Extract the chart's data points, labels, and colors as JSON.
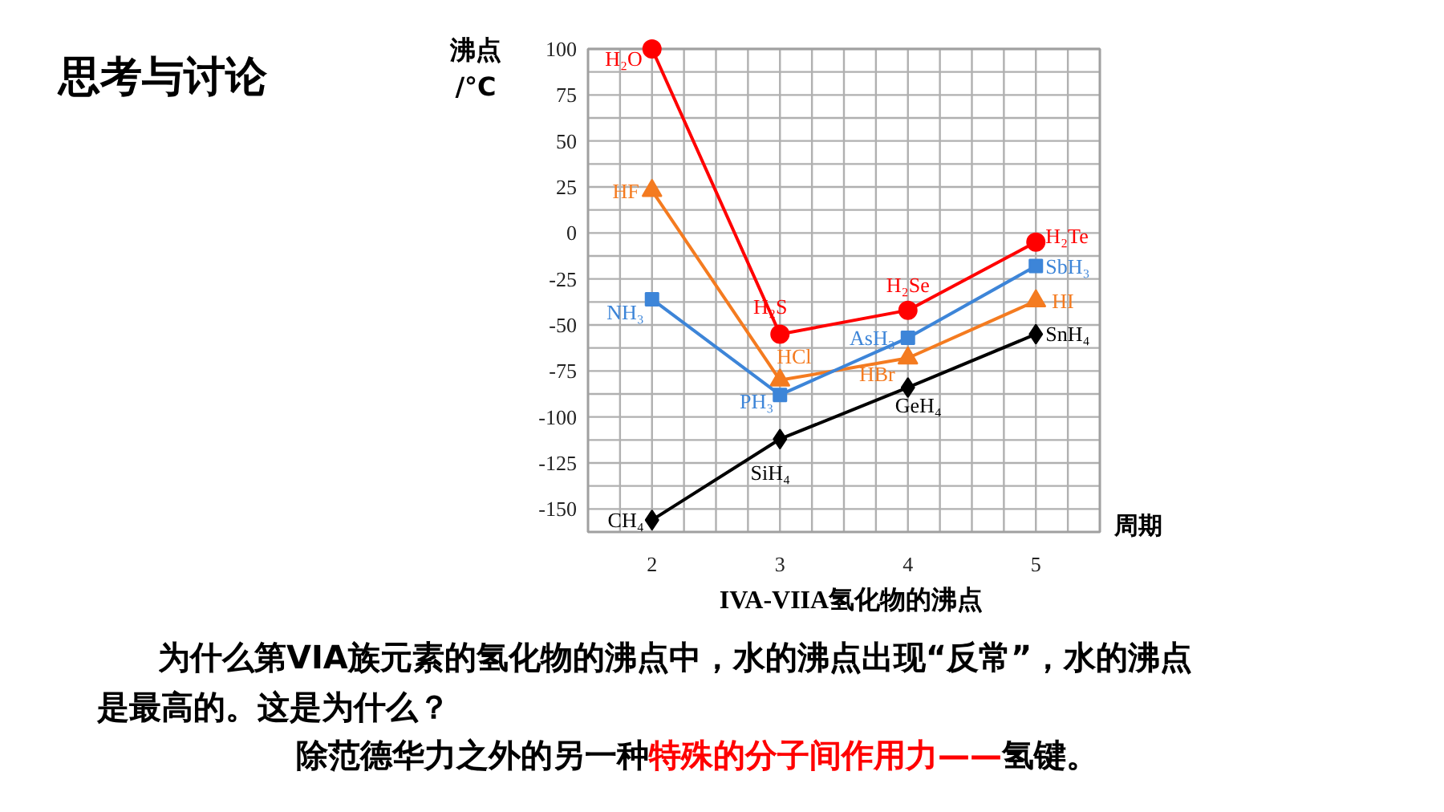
{
  "chart_data": {
    "type": "line",
    "title": "IVA-VIIA氢化物的沸点",
    "xlabel": "周期",
    "ylabel": "沸点\n/°C",
    "x": [
      2,
      3,
      4,
      5
    ],
    "xlim": [
      1.5,
      5.5
    ],
    "xticks": [
      {
        "value": 1.75,
        "label": null
      },
      2,
      {
        "value": 2.25,
        "label": null
      },
      {
        "value": 2.5,
        "label": null
      },
      {
        "value": 2.75,
        "label": null
      },
      3,
      {
        "value": 3.25,
        "label": null
      },
      {
        "value": 3.5,
        "label": null
      },
      {
        "value": 3.75,
        "label": null
      },
      4,
      {
        "value": 4.25,
        "label": null
      },
      {
        "value": 4.5,
        "label": null
      },
      {
        "value": 4.75,
        "label": null
      },
      5,
      {
        "value": 5.25,
        "label": null
      }
    ],
    "ylim": [
      -162.5,
      100
    ],
    "yticks": [
      -150,
      {
        "value": -137.5,
        "label": null
      },
      -125,
      {
        "value": -112.5,
        "label": null
      },
      -100,
      {
        "value": -87.5,
        "label": null
      },
      -75,
      {
        "value": -62.5,
        "label": null
      },
      -50,
      {
        "value": -37.5,
        "label": null
      },
      -25,
      {
        "value": -12.5,
        "label": null
      },
      0,
      {
        "value": 12.5,
        "label": null
      },
      25,
      {
        "value": 37.5,
        "label": null
      },
      50,
      {
        "value": 62.5,
        "label": null
      },
      75,
      {
        "value": 87.5,
        "label": null
      },
      100
    ],
    "grid": true,
    "line_style": "solid",
    "series": [
      {
        "color": "#ff0000",
        "marker": "circle",
        "values": [
          100,
          -55,
          -42,
          -5
        ]
      },
      {
        "color": "#f47b20",
        "marker": "triangle",
        "values": [
          23,
          -80,
          -68,
          -37
        ]
      },
      {
        "color": "#3d85d8",
        "marker": "square",
        "values": [
          -36,
          -88,
          -57,
          -18
        ]
      },
      {
        "color": "#000000",
        "marker": "diamond",
        "values": [
          -156,
          -112,
          -84,
          -55
        ]
      }
    ],
    "annotations": [
      {
        "text": "H₂O",
        "x": 2,
        "y": 100
      },
      {
        "text": "HF",
        "x": 2,
        "y": 23
      },
      {
        "text": "NH₃",
        "x": 2,
        "y": -36
      },
      {
        "text": "CH₄",
        "x": 2,
        "y": -156
      },
      {
        "text": "H₂S",
        "x": 3,
        "y": -55
      },
      {
        "text": "HCl",
        "x": 3,
        "y": -80
      },
      {
        "text": "PH₃",
        "x": 3,
        "y": -88
      },
      {
        "text": "SiH₄",
        "x": 3,
        "y": -112
      },
      {
        "text": "H₂Se",
        "x": 4,
        "y": -42
      },
      {
        "text": "AsH₃",
        "x": 4,
        "y": -57
      },
      {
        "text": "HBr",
        "x": 4,
        "y": -68
      },
      {
        "text": "GeH₄",
        "x": 4,
        "y": -84
      },
      {
        "text": "H₂Te",
        "x": 5,
        "y": -5
      },
      {
        "text": "SbH₃",
        "x": 5,
        "y": -18
      },
      {
        "text": "HI",
        "x": 5,
        "y": -37
      },
      {
        "text": "SnH₄",
        "x": 5,
        "y": -55
      },
      "思考与讨论",
      "为什么第VIA族元素的氢化物的沸点中，水的沸点出现“反常”，水的沸点",
      "是最高的。这是为什么？",
      "除范德华力之外的另一种",
      "特殊的分子间作用力——",
      "氢键。"
    ]
  }
}
